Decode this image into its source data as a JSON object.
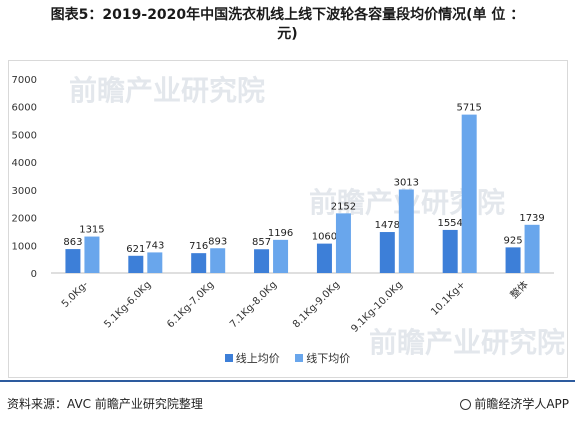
{
  "title_line1": "图表5：2019-2020年中国洗衣机线上线下波轮各容量段均价情况(单 位 ：",
  "title_line2": "元)",
  "chart_data": {
    "type": "bar",
    "categories": [
      "5.0Kg-",
      "5.1Kg-6.0Kg",
      "6.1Kg-7.0Kg",
      "7.1Kg-8.0Kg",
      "8.1Kg-9.0Kg",
      "9.1Kg-10.0Kg",
      "10.1Kg+",
      "整体"
    ],
    "series": [
      {
        "name": "线上均价",
        "values": [
          863,
          621,
          716,
          857,
          1060,
          1478,
          1554,
          925
        ],
        "color": "#3d7fd8"
      },
      {
        "name": "线下均价",
        "values": [
          1315,
          743,
          893,
          1196,
          2152,
          3013,
          5715,
          1739
        ],
        "color": "#69a6ec"
      }
    ],
    "yticks": [
      0,
      1000,
      2000,
      3000,
      4000,
      5000,
      6000,
      7000
    ],
    "ylim": [
      0,
      7000
    ],
    "grid": false,
    "legend": "bottom"
  },
  "watermark": "前瞻产业研究院",
  "footer": {
    "source": "资料来源：AVC 前瞻产业研究院整理",
    "brand": "前瞻经济学人APP"
  }
}
